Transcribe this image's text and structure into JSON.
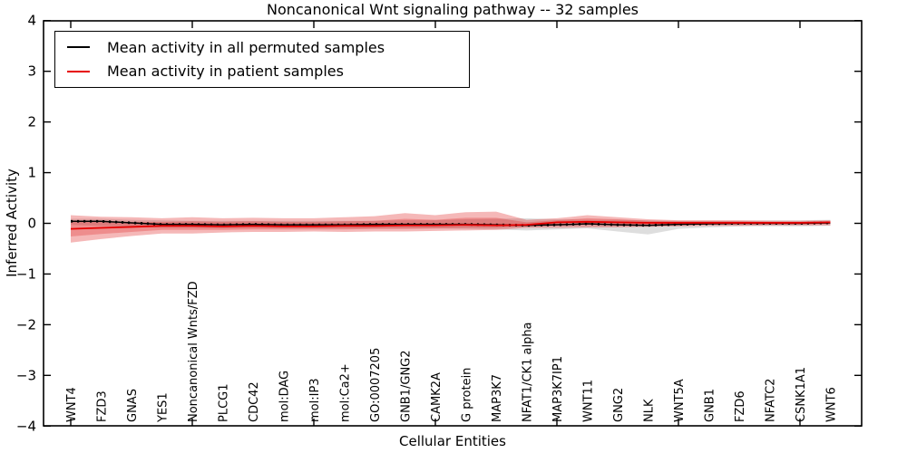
{
  "figure": {
    "title": "Noncanonical Wnt signaling pathway -- 32 samples",
    "xlabel": "Cellular Entities",
    "ylabel": "Inferred Activity"
  },
  "chart_data": {
    "type": "line",
    "title": "Noncanonical Wnt signaling pathway -- 32 samples",
    "xlabel": "Cellular Entities",
    "ylabel": "Inferred Activity",
    "ylim": [
      -4,
      4
    ],
    "ytick_labels": [
      "4",
      "3",
      "2",
      "1",
      "0",
      "−1",
      "−2",
      "−3",
      "−4"
    ],
    "ytick_values": [
      4,
      3,
      2,
      1,
      0,
      -1,
      -2,
      -3,
      -4
    ],
    "xtick_major_indices": [
      0,
      4,
      8,
      12,
      16,
      20,
      24
    ],
    "grid": false,
    "legend_position": "upper left",
    "categories": [
      "WNT4",
      "FZD3",
      "GNAS",
      "YES1",
      "Noncanonical Wnts/FZD",
      "PLCG1",
      "CDC42",
      "mol:DAG",
      "mol:IP3",
      "mol:Ca2+",
      "GO:0007205",
      "GNB1/GNG2",
      "CAMK2A",
      "G protein",
      "MAP3K7",
      "NFAT1/CK1 alpha",
      "MAP3K7IP1",
      "WNT11",
      "GNG2",
      "NLK",
      "WNT5A",
      "GNB1",
      "FZD6",
      "NFATC2",
      "CSNK1A1",
      "WNT6"
    ],
    "series": [
      {
        "name": "Mean activity in all permuted samples",
        "color": "#000000",
        "style": "solid-with-dotted-overlay",
        "values": [
          0.04,
          0.04,
          0.01,
          -0.02,
          -0.02,
          -0.03,
          -0.02,
          -0.03,
          -0.03,
          -0.03,
          -0.02,
          -0.02,
          -0.02,
          -0.02,
          -0.03,
          -0.04,
          -0.03,
          -0.01,
          -0.03,
          -0.04,
          -0.02,
          -0.01,
          0.0,
          0.0,
          0.0,
          0.01
        ]
      },
      {
        "name": "Mean activity in patient samples",
        "color": "#e60000",
        "style": "solid",
        "values": [
          -0.11,
          -0.09,
          -0.07,
          -0.05,
          -0.05,
          -0.06,
          -0.05,
          -0.06,
          -0.06,
          -0.05,
          -0.05,
          -0.04,
          -0.04,
          -0.03,
          -0.04,
          -0.03,
          0.02,
          0.03,
          0.02,
          0.01,
          0.01,
          0.01,
          0.01,
          0.01,
          0.01,
          0.02
        ]
      }
    ],
    "bands": [
      {
        "name": "permuted-band",
        "color": "rgba(0,0,0,0.13)",
        "hi": [
          0.09,
          0.09,
          0.07,
          0.06,
          0.05,
          0.05,
          0.05,
          0.05,
          0.05,
          0.05,
          0.05,
          0.06,
          0.06,
          0.08,
          0.09,
          0.1,
          0.08,
          0.07,
          0.07,
          0.06,
          0.05,
          0.05,
          0.05,
          0.06,
          0.06,
          0.07
        ],
        "lo": [
          -0.03,
          -0.05,
          -0.07,
          -0.09,
          -0.09,
          -0.1,
          -0.09,
          -0.1,
          -0.1,
          -0.1,
          -0.1,
          -0.1,
          -0.1,
          -0.11,
          -0.12,
          -0.14,
          -0.12,
          -0.1,
          -0.16,
          -0.22,
          -0.11,
          -0.08,
          -0.06,
          -0.06,
          -0.06,
          -0.05
        ]
      },
      {
        "name": "patient-band-outer",
        "color": "rgba(221,21,21,0.30)",
        "hi": [
          0.16,
          0.13,
          0.12,
          0.1,
          0.12,
          0.1,
          0.11,
          0.1,
          0.1,
          0.12,
          0.14,
          0.2,
          0.16,
          0.22,
          0.23,
          0.07,
          0.1,
          0.16,
          0.12,
          0.08,
          0.06,
          0.06,
          0.06,
          0.05,
          0.05,
          0.06
        ],
        "lo": [
          -0.38,
          -0.31,
          -0.25,
          -0.2,
          -0.2,
          -0.18,
          -0.17,
          -0.17,
          -0.16,
          -0.17,
          -0.16,
          -0.16,
          -0.15,
          -0.14,
          -0.13,
          -0.09,
          -0.09,
          -0.08,
          -0.08,
          -0.07,
          -0.06,
          -0.05,
          -0.05,
          -0.04,
          -0.04,
          -0.04
        ]
      },
      {
        "name": "patient-band-inner",
        "color": "rgba(221,21,21,0.26)",
        "hi": [
          0.03,
          0.03,
          0.03,
          0.03,
          0.04,
          0.03,
          0.04,
          0.03,
          0.03,
          0.04,
          0.05,
          0.09,
          0.07,
          0.11,
          0.11,
          0.02,
          0.06,
          0.1,
          0.08,
          0.05,
          0.04,
          0.04,
          0.04,
          0.03,
          0.03,
          0.04
        ],
        "lo": [
          -0.26,
          -0.21,
          -0.17,
          -0.13,
          -0.13,
          -0.13,
          -0.12,
          -0.12,
          -0.12,
          -0.12,
          -0.11,
          -0.11,
          -0.1,
          -0.09,
          -0.09,
          -0.06,
          -0.04,
          -0.03,
          -0.04,
          -0.03,
          -0.03,
          -0.02,
          -0.02,
          -0.02,
          -0.02,
          -0.01
        ]
      }
    ]
  }
}
